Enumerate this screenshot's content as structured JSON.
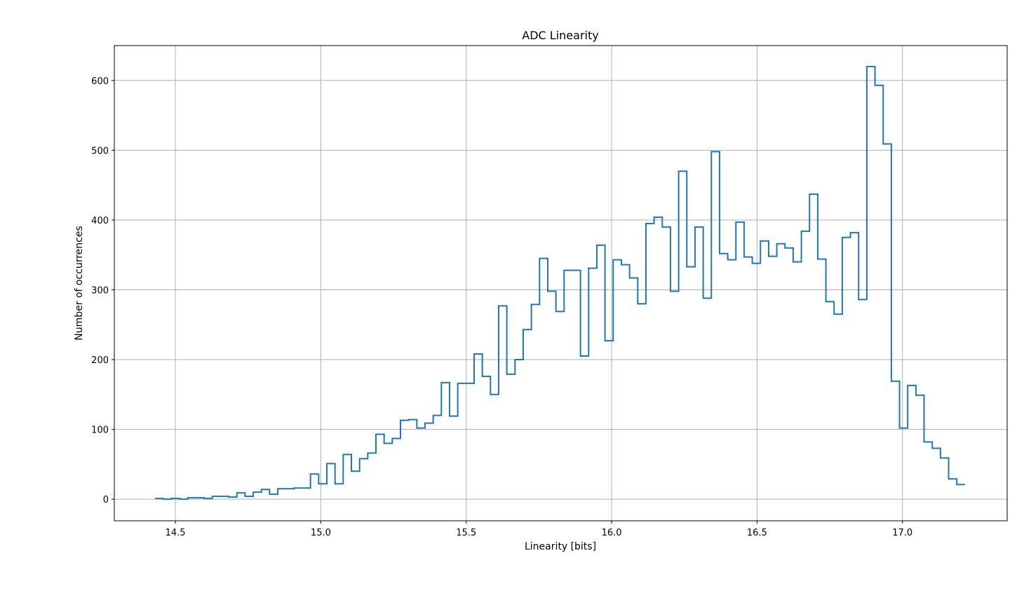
{
  "chart_data": {
    "type": "histogram",
    "title": "ADC Linearity",
    "xlabel": "Linearity [bits]",
    "ylabel": "Number of occurrences",
    "xlim": [
      14.29,
      17.36
    ],
    "ylim": [
      -31,
      650
    ],
    "grid": true,
    "line_color": "#1f77b4",
    "xticks": [
      14.5,
      15.0,
      15.5,
      16.0,
      16.5,
      17.0
    ],
    "xtick_labels": [
      "14.5",
      "15.0",
      "15.5",
      "16.0",
      "16.5",
      "17.0"
    ],
    "yticks": [
      0,
      100,
      200,
      300,
      400,
      500,
      600
    ],
    "ytick_labels": [
      "0",
      "100",
      "200",
      "300",
      "400",
      "500",
      "600"
    ],
    "bin_start": 14.43,
    "bin_end": 17.215,
    "values": [
      1,
      0,
      1,
      0,
      2,
      2,
      1,
      4,
      4,
      3,
      9,
      4,
      10,
      14,
      7,
      15,
      15,
      16,
      16,
      36,
      22,
      51,
      22,
      64,
      40,
      58,
      66,
      93,
      80,
      87,
      113,
      114,
      102,
      109,
      120,
      167,
      119,
      166,
      166,
      208,
      176,
      150,
      277,
      179,
      200,
      243,
      279,
      345,
      298,
      269,
      328,
      328,
      205,
      331,
      364,
      227,
      343,
      336,
      317,
      280,
      395,
      404,
      390,
      298,
      470,
      333,
      390,
      288,
      498,
      352,
      343,
      397,
      347,
      338,
      370,
      348,
      366,
      360,
      340,
      384,
      437,
      344,
      283,
      265,
      375,
      382,
      286,
      620,
      593,
      509,
      169,
      102,
      163,
      149,
      82,
      73,
      59,
      29,
      21
    ]
  }
}
